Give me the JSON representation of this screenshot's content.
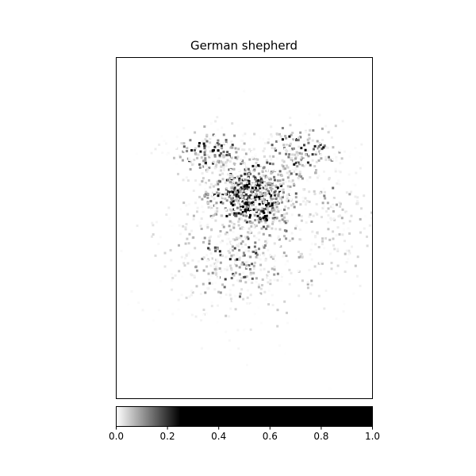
{
  "chart_data": {
    "type": "heatmap",
    "title": "German shepherd",
    "colorbar": {
      "lim": [
        0,
        1
      ],
      "ticks": [
        {
          "value": 0,
          "label": "0.0"
        },
        0.2,
        0.4,
        0.6,
        0.8,
        {
          "value": 1,
          "label": "1.0"
        }
      ]
    }
  }
}
